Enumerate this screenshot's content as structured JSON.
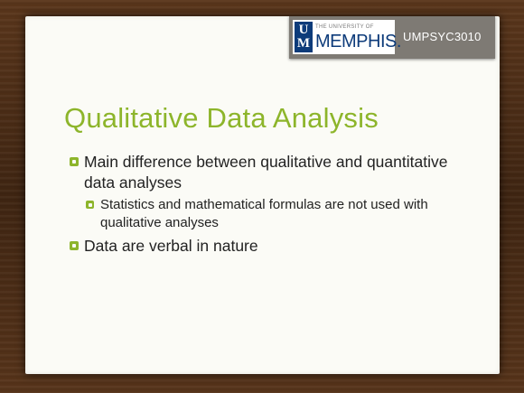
{
  "header": {
    "logo": {
      "mark_top": "U",
      "mark_bottom": "M",
      "university_line": "THE UNIVERSITY OF",
      "name": "MEMPHIS."
    },
    "course_code": "UMPSYC3010"
  },
  "slide": {
    "title": "Qualitative Data Analysis",
    "bullets": [
      {
        "text": "Main difference between qualitative and quantitative data analyses"
      },
      {
        "text": "Statistics and mathematical formulas are not used with qualitative analyses"
      },
      {
        "text": "Data are verbal in nature"
      }
    ]
  },
  "colors": {
    "accent": "#8db52b",
    "banner": "#7e7a74",
    "brand_blue": "#0d3b7a"
  }
}
